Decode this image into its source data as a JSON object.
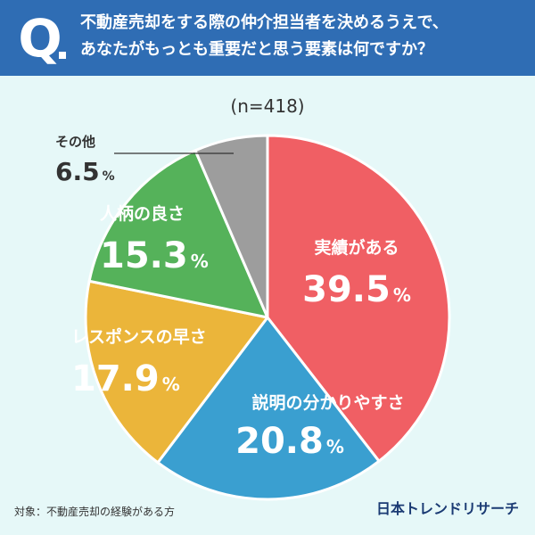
{
  "header": {
    "badge": "Q",
    "question_line1": "不動産売却をする際の仲介担当者を決めるうえで、",
    "question_line2": "あなたがもっとも重要だと思う要素は何ですか？"
  },
  "sample_size": "(n=418)",
  "footer": {
    "note": "対象：不動産売却の経験がある方",
    "brand": "日本トレンドリサーチ"
  },
  "colors": {
    "header_bg": "#2f6db4",
    "background": "#e6f8f8"
  },
  "chart_data": {
    "type": "pie",
    "unit": "%",
    "slices": [
      {
        "label": "実績がある",
        "value": 39.5,
        "color": "#f05f64",
        "label_color": "#ffffff",
        "value_color": "#ffffff"
      },
      {
        "label": "説明の分かりやすさ",
        "value": 20.8,
        "color": "#3a9fd0",
        "label_color": "#ffffff",
        "value_color": "#ffffff"
      },
      {
        "label": "レスポンスの早さ",
        "value": 17.9,
        "color": "#ebb53a",
        "label_color": "#ffffff",
        "value_color": "#ffffff"
      },
      {
        "label": "人柄の良さ",
        "value": 15.3,
        "color": "#55b25a",
        "label_color": "#ffffff",
        "value_color": "#ffffff"
      },
      {
        "label": "その他",
        "value": 6.5,
        "color": "#9d9d9d",
        "label_color": "#333333",
        "value_color": "#333333"
      }
    ]
  }
}
